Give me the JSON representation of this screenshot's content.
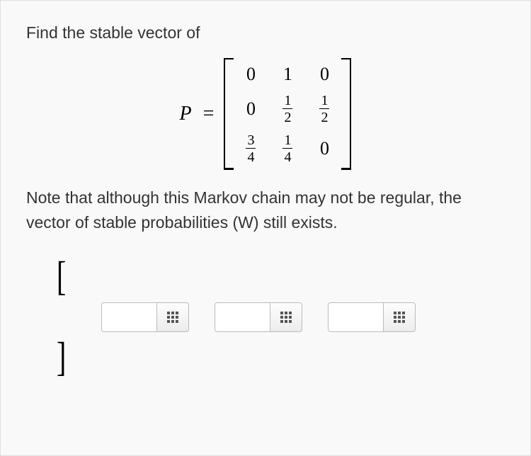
{
  "prompt": "Find the stable vector of",
  "note": "Note that although this Markov chain may not be regular, the vector of stable probabilities (W) still exists.",
  "matrix": {
    "label": "P",
    "equals": "=",
    "rows": [
      [
        {
          "type": "int",
          "v": "0"
        },
        {
          "type": "int",
          "v": "1"
        },
        {
          "type": "int",
          "v": "0"
        }
      ],
      [
        {
          "type": "int",
          "v": "0"
        },
        {
          "type": "frac",
          "n": "1",
          "d": "2"
        },
        {
          "type": "frac",
          "n": "1",
          "d": "2"
        }
      ],
      [
        {
          "type": "frac",
          "n": "3",
          "d": "4"
        },
        {
          "type": "frac",
          "n": "1",
          "d": "4"
        },
        {
          "type": "int",
          "v": "0"
        }
      ]
    ]
  },
  "answer": {
    "open_bracket": "[",
    "close_bracket": "]",
    "inputs": [
      {
        "value": "",
        "placeholder": ""
      },
      {
        "value": "",
        "placeholder": ""
      },
      {
        "value": "",
        "placeholder": ""
      }
    ]
  },
  "style": {
    "bg": "#f9f9f9",
    "border": "#e0e0e0",
    "text_color": "#333333",
    "font_size_body": 23,
    "font_size_matrix": 26,
    "input_border": "#bbbbbb",
    "icon_dot": "#555555"
  }
}
